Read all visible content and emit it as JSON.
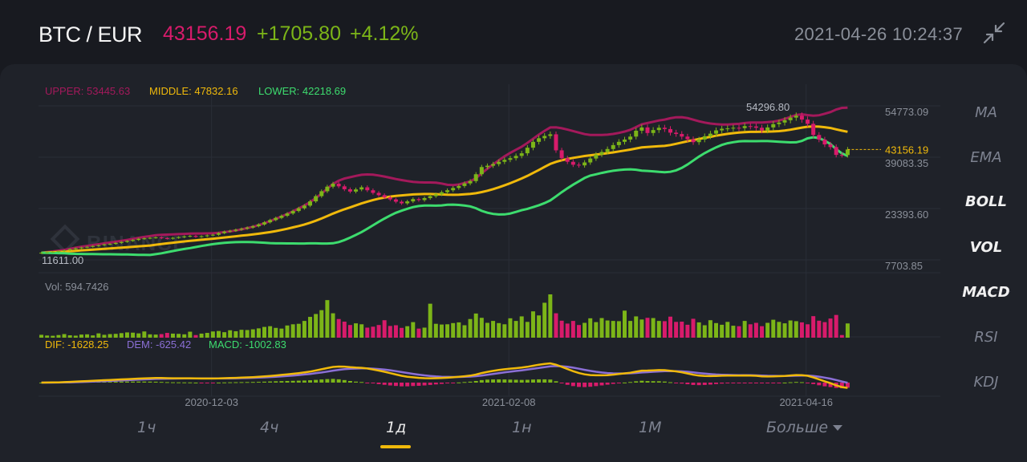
{
  "header": {
    "pair": "BTC / EUR",
    "price": "43156.19",
    "change": "+1705.80",
    "change_pct": "+4.12%",
    "datetime": "2021-04-26 10:24:37",
    "shrink_icon": "collapse-arrows-icon"
  },
  "boll_legend": {
    "upper": "UPPER: 53445.63",
    "middle": "MIDDLE: 47832.16",
    "lower": "LOWER: 42218.69"
  },
  "vol_legend": "Vol: 594.7426",
  "macd_legend": {
    "dif": "DIF: -1628.25",
    "dem": "DEM: -625.42",
    "macd": "MACD: -1002.83"
  },
  "watermark": "BINANCE",
  "side_menu": [
    "MA",
    "EMA",
    "BOLL",
    "VOL",
    "MACD",
    "RSI",
    "KDJ"
  ],
  "side_menu_active": [
    "BOLL",
    "VOL",
    "MACD"
  ],
  "timeframes": [
    "1ч",
    "4ч",
    "1д",
    "1н",
    "1М",
    "Больше"
  ],
  "timeframe_active": "1д",
  "colors": {
    "up": "#7cb518",
    "down": "#d81b6b",
    "upper_band": "#a3195b",
    "middle_band": "#f0b90b",
    "lower_band": "#3ddc6e",
    "dem_line": "#8b6fd6",
    "background": "#1f2229"
  },
  "chart_data": [
    {
      "type": "candlestick",
      "title": "BTC / EUR",
      "y_tick_labels": [
        "54773.09",
        "39083.35",
        "23393.60",
        "7703.85"
      ],
      "y_ticks": [
        54773.09,
        39083.35,
        23393.6,
        7703.85
      ],
      "ylim": [
        7703.85,
        54773.09
      ],
      "x_tick_labels": [
        "2020-12-03",
        "2021-02-08",
        "2021-04-16"
      ],
      "xlim": [
        "2020-10-25",
        "2021-04-26"
      ],
      "max_label": "54296.80",
      "min_label": "11611.00",
      "last_price_label": "43156.19",
      "last_price": 43156.19,
      "closes": [
        11611,
        11750,
        11900,
        12100,
        12350,
        12700,
        13000,
        13200,
        13400,
        13650,
        13900,
        14150,
        14300,
        14600,
        14900,
        15200,
        15500,
        15850,
        16000,
        16150,
        16300,
        16050,
        15900,
        16150,
        16350,
        16600,
        16750,
        16450,
        16650,
        16900,
        17100,
        17600,
        18050,
        18300,
        18650,
        18950,
        19300,
        19700,
        20250,
        20900,
        21600,
        22250,
        22900,
        23600,
        24350,
        25200,
        26000,
        27300,
        28900,
        30400,
        31800,
        32700,
        31900,
        31000,
        30300,
        30950,
        31600,
        30700,
        29900,
        29200,
        28500,
        27900,
        27200,
        26700,
        27300,
        28000,
        27700,
        28300,
        28900,
        29450,
        30100,
        30700,
        31400,
        32000,
        32800,
        33500,
        35600,
        37800,
        38200,
        38700,
        39400,
        40000,
        40500,
        41200,
        42000,
        43700,
        45500,
        46600,
        47300,
        47800,
        42900,
        40500,
        39400,
        38500,
        38300,
        39200,
        40400,
        41600,
        42400,
        43300,
        44500,
        45500,
        46200,
        47100,
        48900,
        49900,
        48200,
        49100,
        49800,
        49400,
        48300,
        47900,
        47100,
        46300,
        45400,
        46200,
        47200,
        48000,
        49000,
        49500,
        49600,
        49800,
        49700,
        50300,
        50200,
        49800,
        49000,
        49900,
        50900,
        51400,
        52100,
        52900,
        53500,
        52300,
        51000,
        47600,
        46200,
        44700,
        43900,
        41500,
        41450,
        43156.19
      ],
      "volumes": [
        120,
        90,
        80,
        110,
        150,
        100,
        85,
        130,
        140,
        95,
        180,
        120,
        150,
        160,
        190,
        220,
        210,
        180,
        260,
        140,
        130,
        150,
        200,
        170,
        160,
        140,
        250,
        110,
        170,
        200,
        260,
        280,
        230,
        310,
        270,
        330,
        320,
        350,
        390,
        450,
        480,
        410,
        380,
        510,
        560,
        580,
        700,
        870,
        990,
        1150,
        1570,
        1020,
        780,
        670,
        530,
        600,
        560,
        420,
        460,
        530,
        730,
        490,
        520,
        410,
        480,
        650,
        380,
        420,
        1420,
        580,
        550,
        560,
        610,
        640,
        520,
        780,
        1010,
        830,
        620,
        700,
        610,
        560,
        810,
        700,
        890,
        660,
        1100,
        930,
        1460,
        1810,
        1020,
        710,
        590,
        700,
        530,
        620,
        810,
        650,
        820,
        720,
        700,
        690,
        1130,
        700,
        890,
        760,
        830,
        820,
        700,
        690,
        880,
        660,
        670,
        540,
        790,
        640,
        520,
        730,
        610,
        540,
        660,
        500,
        480,
        700,
        560,
        620,
        480,
        620,
        750,
        660,
        600,
        720,
        690,
        640,
        560,
        900,
        710,
        650,
        800,
        950,
        110,
        594.7426
      ],
      "vol_label": "594.7426",
      "dif_label": "-1628.25",
      "dem_label": "-625.42",
      "macd_label": "-1002.83",
      "legend": [
        "UPPER",
        "MIDDLE",
        "LOWER"
      ]
    }
  ]
}
